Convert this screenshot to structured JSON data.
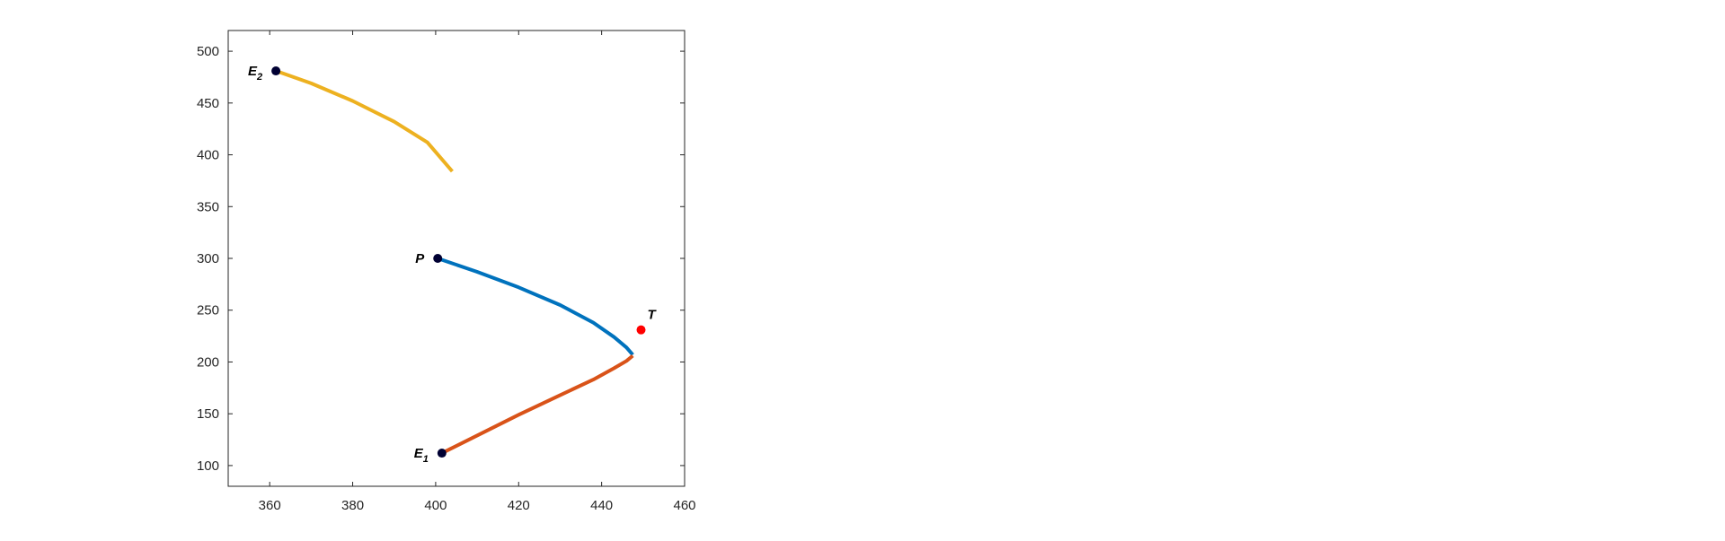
{
  "chart_data": {
    "type": "line",
    "title": "",
    "xlabel": "",
    "ylabel": "",
    "xlim": [
      350,
      460
    ],
    "ylim": [
      80,
      520
    ],
    "xticks": [
      360,
      380,
      400,
      420,
      440,
      460
    ],
    "yticks": [
      100,
      150,
      200,
      250,
      300,
      350,
      400,
      450,
      500
    ],
    "grid": false,
    "series": [
      {
        "color": "#0072BD",
        "x": [
          400.5,
          410,
          420,
          430,
          438,
          443,
          446,
          447.5
        ],
        "y": [
          300,
          287,
          272,
          255,
          238,
          224,
          214,
          207
        ]
      },
      {
        "color": "#D95319",
        "x": [
          401.5,
          410,
          420,
          430,
          438,
          443,
          446,
          447.5
        ],
        "y": [
          112,
          129,
          149,
          168,
          183,
          194,
          201,
          206
        ]
      },
      {
        "color": "#EDB120",
        "x": [
          361.5,
          370,
          380,
          390,
          398,
          404
        ],
        "y": [
          481,
          469,
          452,
          432,
          412,
          384
        ]
      }
    ],
    "points": [
      {
        "label": "E",
        "sub": "2",
        "x": 361.5,
        "y": 481,
        "color": "#000033",
        "label_side": "left"
      },
      {
        "label": "P",
        "sub": "",
        "x": 400.5,
        "y": 300,
        "color": "#000033",
        "label_side": "left"
      },
      {
        "label": "E",
        "sub": "1",
        "x": 401.5,
        "y": 112,
        "color": "#000033",
        "label_side": "left"
      },
      {
        "label": "T",
        "sub": "",
        "x": 449.5,
        "y": 231,
        "color": "#FF0000",
        "label_side": "above-right"
      }
    ]
  }
}
